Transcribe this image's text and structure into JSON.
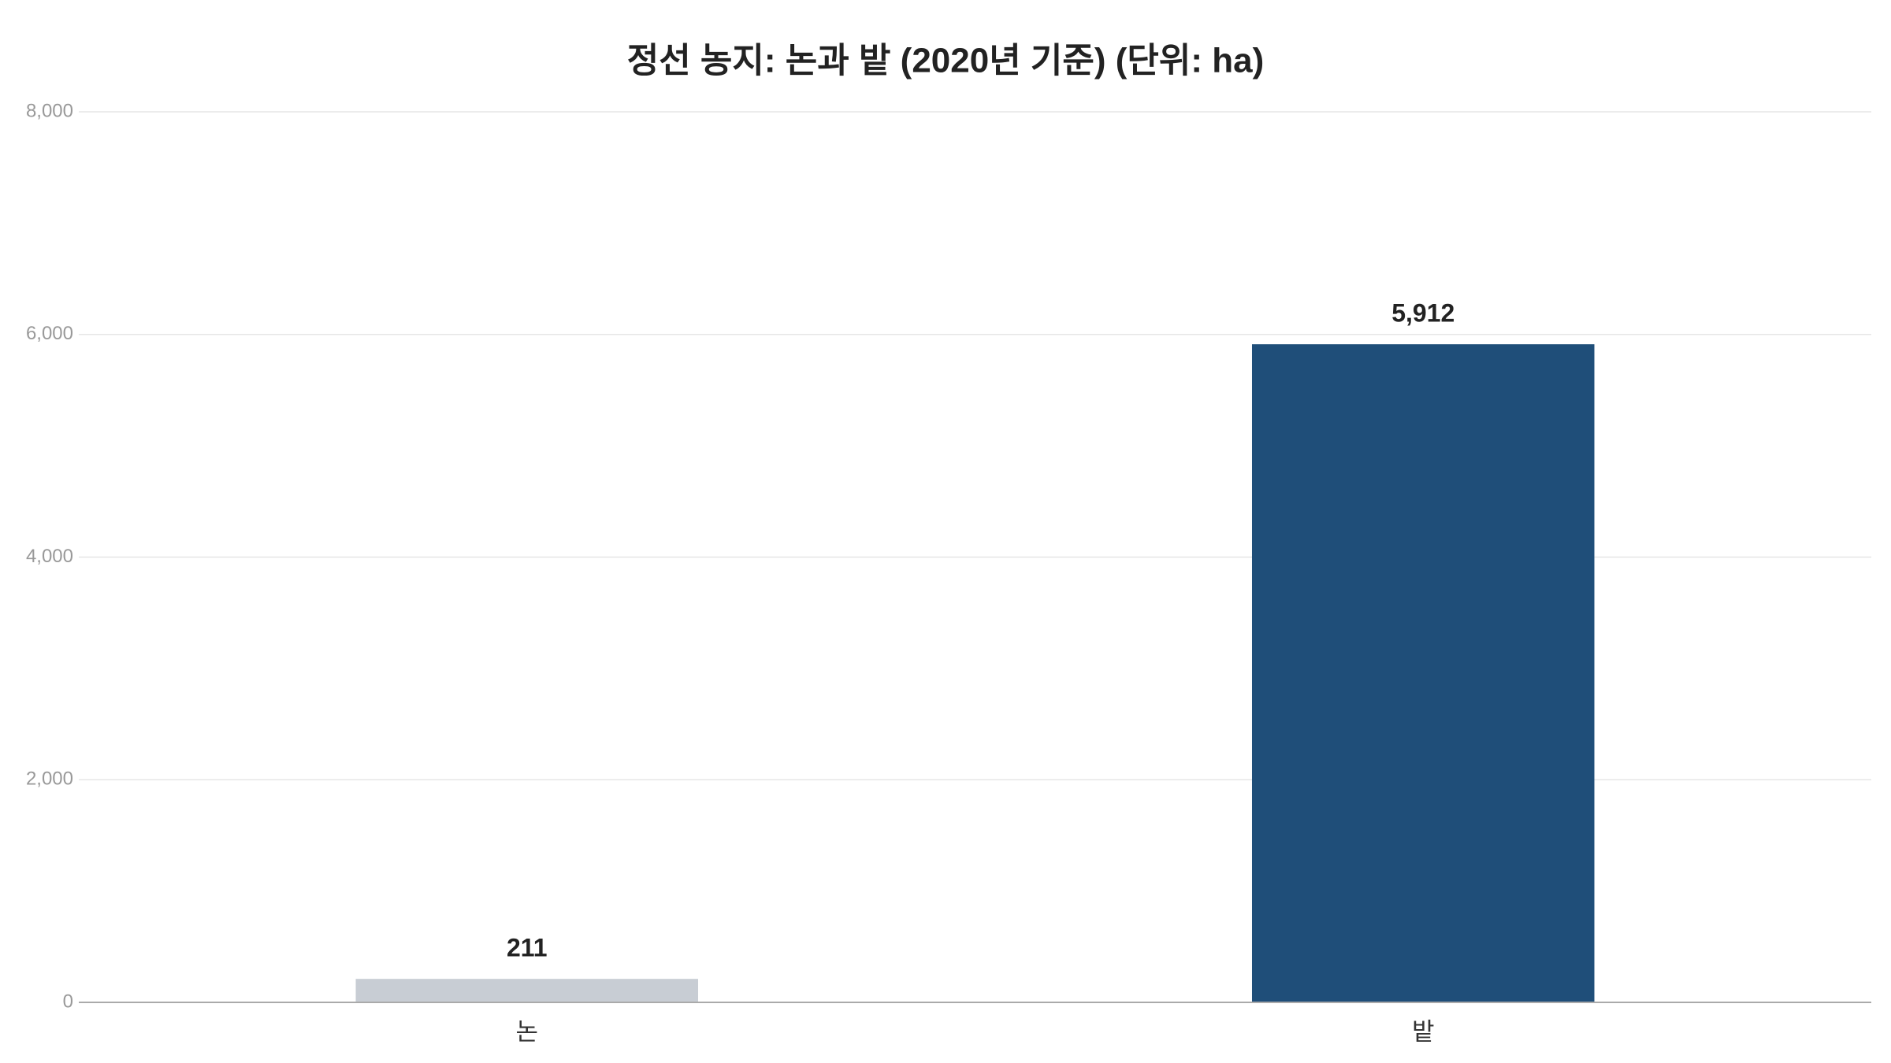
{
  "chart_data": {
    "type": "bar",
    "title": "정선 농지: 논과 밭 (2020년 기준) (단위: ha)",
    "categories": [
      "논",
      "밭"
    ],
    "values": [
      211,
      5912
    ],
    "value_labels": [
      "211",
      "5,912"
    ],
    "colors": [
      "#c8cdd4",
      "#1f4e79"
    ],
    "ylim": [
      0,
      8000
    ],
    "yticks": [
      0,
      {
        "value": 2000,
        "label": "2,000"
      },
      {
        "value": 4000,
        "label": "4,000"
      },
      {
        "value": 6000,
        "label": "6,000"
      },
      {
        "value": 8000,
        "label": "8,000"
      }
    ],
    "grid": true
  }
}
